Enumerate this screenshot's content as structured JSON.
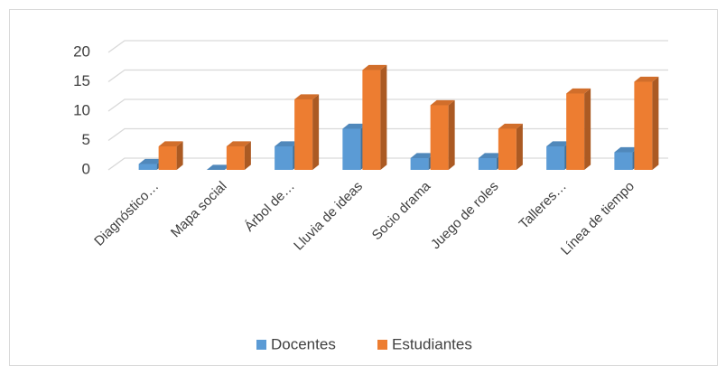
{
  "chart_data": {
    "type": "bar3d",
    "categories": [
      "Diagnóstico…",
      "Mapa social",
      "Árbol de…",
      "Lluvia de ideas",
      "Socio drama",
      "Juego de roles",
      "Talleres…",
      "Línea de tiempo"
    ],
    "series": [
      {
        "name": "Docentes",
        "color": "#5b9bd5",
        "values": [
          1,
          0,
          4,
          7,
          2,
          2,
          4,
          3
        ]
      },
      {
        "name": "Estudiantes",
        "color": "#ed7d31",
        "values": [
          4,
          4,
          12,
          17,
          11,
          7,
          13,
          15
        ]
      }
    ],
    "ylim": [
      0,
      20
    ],
    "yticks": [
      0,
      5,
      10,
      15,
      20
    ],
    "grid": true,
    "legend": "bottom"
  }
}
